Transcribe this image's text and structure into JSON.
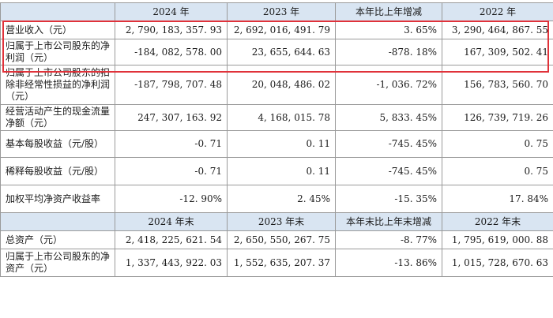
{
  "header1": [
    "",
    "2024 年",
    "2023 年",
    "本年比上年增减",
    "2022 年"
  ],
  "rows1": [
    {
      "label": "营业收入（元）",
      "values": [
        "2, 790, 183, 357. 93",
        "2, 692, 016, 491. 79",
        "3. 65%",
        "3, 290, 464, 867. 55"
      ]
    },
    {
      "label": "归属于上市公司股东的净利润（元）",
      "values": [
        "-184, 082, 578. 00",
        "23, 655, 644. 63",
        "-878. 18%",
        "167, 309, 502. 41"
      ]
    },
    {
      "label": "归属于上市公司股东的扣除非经常性损益的净利润（元）",
      "values": [
        "-187, 798, 707. 48",
        "20, 048, 486. 02",
        "-1, 036. 72%",
        "156, 783, 560. 70"
      ]
    },
    {
      "label": "经营活动产生的现金流量净额（元）",
      "values": [
        "247, 307, 163. 92",
        "4, 168, 015. 78",
        "5, 833. 45%",
        "126, 739, 719. 26"
      ]
    },
    {
      "label": "基本每股收益（元/股）",
      "values": [
        "-0. 71",
        "0. 11",
        "-745. 45%",
        "0. 75"
      ]
    },
    {
      "label": "稀释每股收益（元/股）",
      "values": [
        "-0. 71",
        "0. 11",
        "-745. 45%",
        "0. 75"
      ]
    },
    {
      "label": "加权平均净资产收益率",
      "values": [
        "-12. 90%",
        "2. 45%",
        "-15. 35%",
        "17. 84%"
      ]
    }
  ],
  "header2": [
    "",
    "2024 年末",
    "2023 年末",
    "本年末比上年末增减",
    "2022 年末"
  ],
  "rows2": [
    {
      "label": "总资产（元）",
      "values": [
        "2, 418, 225, 621. 54",
        "2, 650, 550, 267. 75",
        "-8. 77%",
        "1, 795, 619, 000. 88"
      ]
    },
    {
      "label": "归属于上市公司股东的净资产（元）",
      "values": [
        "1, 337, 443, 922. 03",
        "1, 552, 635, 207. 37",
        "-13. 86%",
        "1, 015, 728, 670. 63"
      ]
    }
  ]
}
